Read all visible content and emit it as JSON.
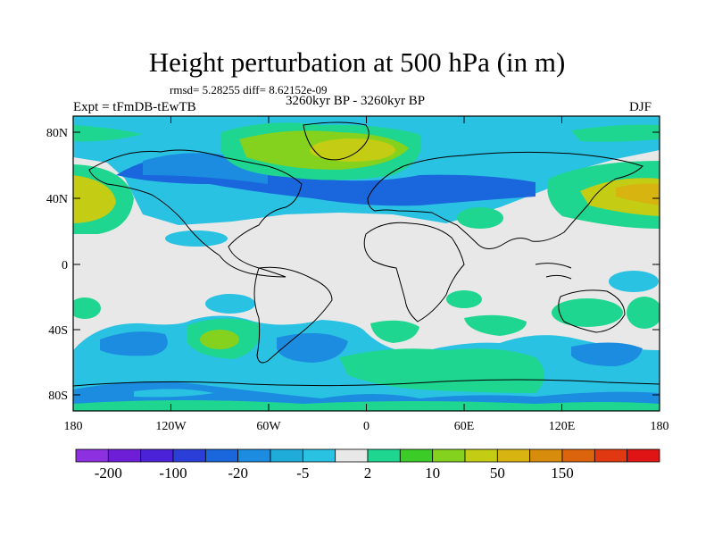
{
  "title": "Height perturbation at 500 hPa (in m)",
  "stats": "rmsd= 5.28255 diff= 8.62152e-09",
  "period": "3260kyr BP - 3260kyr BP",
  "experiment": "Expt = tFmDB-tEwTB",
  "season": "DJF",
  "lat_labels": [
    "80N",
    "40N",
    "0",
    "40S",
    "80S"
  ],
  "lon_labels": [
    "180",
    "120W",
    "60W",
    "0",
    "60E",
    "120E",
    "180"
  ],
  "colorbar": {
    "colors": [
      "#8c30e0",
      "#6f1ed8",
      "#4b22d8",
      "#2b3fd8",
      "#1a66dc",
      "#1c8ce0",
      "#20acd8",
      "#2ac2e2",
      "#e8e8e8",
      "#1ed690",
      "#3ccc28",
      "#84d21e",
      "#c4cc14",
      "#d8b410",
      "#d88c0c",
      "#dc640c",
      "#e03810",
      "#e01414"
    ],
    "labels": [
      "-200",
      "-100",
      "-20",
      "-5",
      "2",
      "10",
      "50",
      "150"
    ]
  },
  "field_colors": {
    "background": "#e8e8e8",
    "cyan": "#2ac2e2",
    "light_blue": "#1c8ce0",
    "blue": "#1a66dc",
    "green": "#1ed690",
    "lime": "#84d21e",
    "yellow": "#c4cc14",
    "orange": "#d8b410"
  }
}
